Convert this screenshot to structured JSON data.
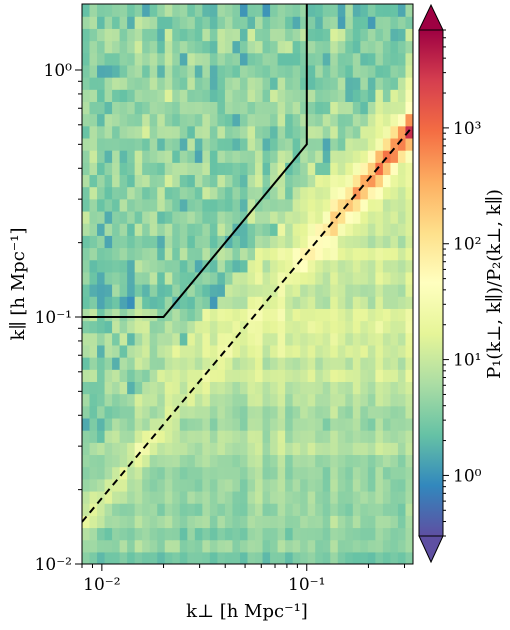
{
  "chart_data": {
    "type": "heatmap",
    "title": "",
    "xlabel": "k⊥ [h Mpc⁻¹]",
    "ylabel": "k∥ [h Mpc⁻¹]",
    "colorbar_label": "P₁(k⊥, k∥)/P₂(k⊥, k∥)",
    "x_scale": "log",
    "y_scale": "log",
    "color_scale": "log",
    "colormap": "Spectral_r",
    "xlim": [
      0.008,
      0.33
    ],
    "ylim": [
      0.01,
      1.85
    ],
    "clim": [
      0.3,
      7000
    ],
    "x_ticks": [
      {
        "value": 0.01,
        "label": "10⁻²"
      },
      {
        "value": 0.1,
        "label": "10⁻¹"
      }
    ],
    "y_ticks": [
      {
        "value": 0.01,
        "label": "10⁻²"
      },
      {
        "value": 0.1,
        "label": "10⁻¹"
      },
      {
        "value": 1,
        "label": "10⁰"
      }
    ],
    "colorbar_ticks": [
      {
        "value": 1,
        "label": "10⁰"
      },
      {
        "value": 10,
        "label": "10¹"
      },
      {
        "value": 100,
        "label": "10²"
      },
      {
        "value": 1000,
        "label": "10³"
      }
    ],
    "colorbar_extend": "both",
    "heatmap_summary": {
      "background_level": 12,
      "low_kpar_floor_level": 4,
      "wedge_peak_level": 3000,
      "wedge_line_slope_kpar_per_kperp": 1.8,
      "wedge_width_decades": 0.08,
      "high_kpar_region_level": 3
    },
    "lines": [
      {
        "style": "solid",
        "color": "#000000",
        "points": [
          [
            0.008,
            0.1
          ],
          [
            0.02,
            0.1
          ],
          [
            0.1,
            0.5
          ],
          [
            0.1,
            1.85
          ]
        ]
      },
      {
        "style": "dashed",
        "color": "#000000",
        "points": [
          [
            0.008,
            0.0148
          ],
          [
            0.33,
            0.593
          ]
        ]
      }
    ]
  }
}
